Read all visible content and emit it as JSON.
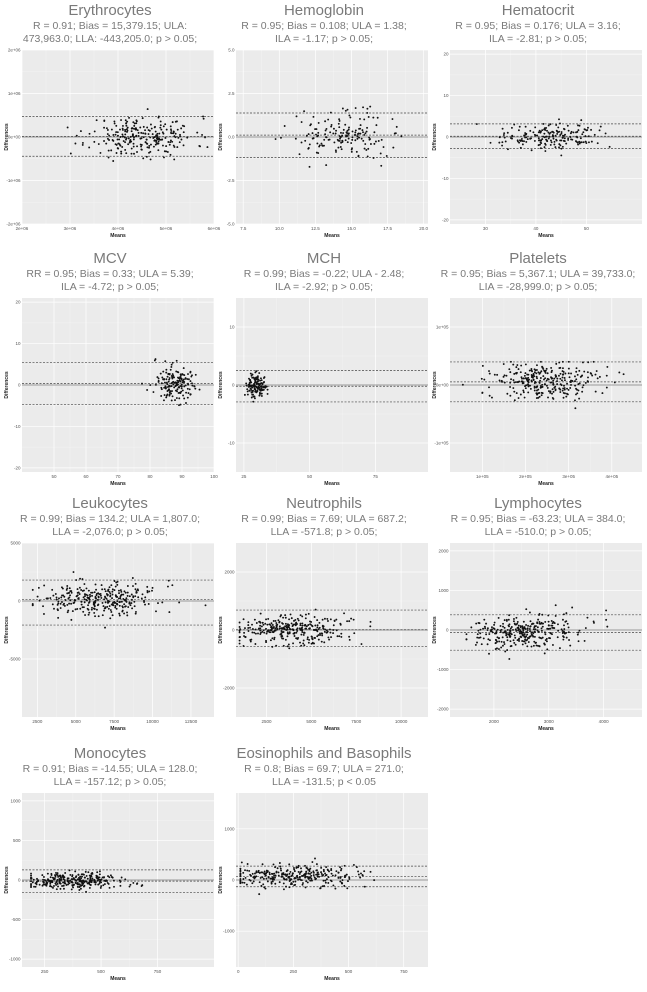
{
  "chart_data": [
    {
      "type": "scatter",
      "title": "Erythrocytes",
      "stats_lines": [
        "R = 0.91; Bias = 15,379.15; ULA:",
        "473,963.0; LLA: -443,205.0; p > 0.05;"
      ],
      "xlabel": "Means",
      "ylabel": "Differences",
      "xlim": [
        2000000,
        6000000
      ],
      "ylim": [
        -2000000,
        2000000
      ],
      "xticks": [
        {
          "v": 2000000,
          "label": "2e+06"
        },
        {
          "v": 3000000,
          "label": "3e+06"
        },
        {
          "v": 4000000,
          "label": "4e+06"
        },
        {
          "v": 5000000,
          "label": "5e+06"
        },
        {
          "v": 6000000,
          "label": "6e+06"
        }
      ],
      "yticks": [
        {
          "v": -2000000,
          "label": "-2e+06"
        },
        {
          "v": -1000000,
          "label": "-1e+06"
        },
        {
          "v": 0,
          "label": "0e+00"
        },
        {
          "v": 1000000,
          "label": "1e+06"
        },
        {
          "v": 2000000,
          "label": "2e+06"
        }
      ],
      "bias": 15379.15,
      "upper": 473963,
      "lower": -443205,
      "cluster": {
        "xc": 4500000,
        "xs": 550000,
        "ys": 230000,
        "n": 260,
        "xmin": 2100000,
        "xmax": 5900000,
        "ymin": -700000,
        "ymax": 700000,
        "seed": 11
      }
    },
    {
      "type": "scatter",
      "title": "Hemoglobin",
      "stats_lines": [
        "R = 0.95; Bias = 0.108; ULA = 1.38;",
        "ILA = -1.17; p > 0.05;"
      ],
      "xlabel": "Means",
      "ylabel": "Differences",
      "xlim": [
        7,
        20.3
      ],
      "ylim": [
        -5,
        5
      ],
      "xticks": [
        {
          "v": 7.5,
          "label": "7.5"
        },
        {
          "v": 10,
          "label": "10.0"
        },
        {
          "v": 12.5,
          "label": "12.5"
        },
        {
          "v": 15,
          "label": "15.0"
        },
        {
          "v": 17.5,
          "label": "17.5"
        },
        {
          "v": 20,
          "label": "20.0"
        }
      ],
      "yticks": [
        {
          "v": -5,
          "label": "-5.0"
        },
        {
          "v": -2.5,
          "label": "-2.5"
        },
        {
          "v": 0,
          "label": "0.0"
        },
        {
          "v": 2.5,
          "label": "2.5"
        },
        {
          "v": 5,
          "label": "5.0"
        }
      ],
      "bias": 0.108,
      "upper": 1.38,
      "lower": -1.17,
      "cluster": {
        "xc": 14.5,
        "xs": 1.6,
        "ys": 0.65,
        "n": 170,
        "xmin": 7.6,
        "xmax": 19.5,
        "ymin": -1.9,
        "ymax": 1.9,
        "seed": 22
      }
    },
    {
      "type": "scatter",
      "title": "Hematocrit",
      "stats_lines": [
        "R = 0.95; Bias = 0.176; ULA = 3.16;",
        "ILA = -2.81; p > 0.05;"
      ],
      "xlabel": "Means",
      "ylabel": "Differences",
      "xlim": [
        23,
        61
      ],
      "ylim": [
        -21,
        21
      ],
      "xticks": [
        {
          "v": 30,
          "label": "30"
        },
        {
          "v": 40,
          "label": "40"
        },
        {
          "v": 50,
          "label": "50"
        }
      ],
      "yticks": [
        {
          "v": -20,
          "label": "-20"
        },
        {
          "v": -10,
          "label": "-10"
        },
        {
          "v": 0,
          "label": "0"
        },
        {
          "v": 10,
          "label": "10"
        },
        {
          "v": 20,
          "label": "20"
        }
      ],
      "bias": 0.176,
      "upper": 3.16,
      "lower": -2.81,
      "cluster": {
        "xc": 43,
        "xs": 5,
        "ys": 1.5,
        "n": 190,
        "xmin": 24,
        "xmax": 60,
        "ymin": -5,
        "ymax": 5,
        "seed": 33
      }
    },
    {
      "type": "scatter",
      "title": "MCV",
      "stats_lines": [
        "RR = 0.95; Bias = 0.33; ULA = 5.39;",
        "ILA = -4.72; p > 0.05;"
      ],
      "xlabel": "Means",
      "ylabel": "Differences",
      "xlim": [
        40,
        100
      ],
      "ylim": [
        -21,
        21
      ],
      "xticks": [
        {
          "v": 50,
          "label": "50"
        },
        {
          "v": 60,
          "label": "60"
        },
        {
          "v": 70,
          "label": "70"
        },
        {
          "v": 80,
          "label": "80"
        },
        {
          "v": 90,
          "label": "90"
        },
        {
          "v": 100,
          "label": "100"
        }
      ],
      "yticks": [
        {
          "v": -20,
          "label": "-20"
        },
        {
          "v": -10,
          "label": "-10"
        },
        {
          "v": 0,
          "label": "0"
        },
        {
          "v": 10,
          "label": "10"
        },
        {
          "v": 20,
          "label": "20"
        }
      ],
      "bias": 0.33,
      "upper": 5.39,
      "lower": -4.72,
      "cluster": {
        "xc": 88,
        "xs": 3.5,
        "ys": 2.3,
        "n": 170,
        "xmin": 43,
        "xmax": 98,
        "ymin": -6,
        "ymax": 7,
        "seed": 44
      }
    },
    {
      "type": "scatter",
      "title": "MCH",
      "stats_lines": [
        "R = 0.99; Bias = -0.22; ULA - 2.48;",
        "ILA = -2.92; p > 0.05;"
      ],
      "xlabel": "Means",
      "ylabel": "Differences",
      "xlim": [
        22,
        95
      ],
      "ylim": [
        -15,
        15
      ],
      "xticks": [
        {
          "v": 25,
          "label": "25"
        },
        {
          "v": 50,
          "label": "50"
        },
        {
          "v": 75,
          "label": "75"
        }
      ],
      "yticks": [
        {
          "v": -10,
          "label": "-10"
        },
        {
          "v": 0,
          "label": "0"
        },
        {
          "v": 10,
          "label": "10"
        }
      ],
      "bias": -0.22,
      "upper": 2.48,
      "lower": -2.92,
      "cluster": {
        "xc": 29.5,
        "xs": 2,
        "ys": 1,
        "n": 140,
        "xmin": 24,
        "xmax": 34,
        "ymin": -3.4,
        "ymax": 2.5,
        "seed": 55
      }
    },
    {
      "type": "scatter",
      "title": "Platelets",
      "stats_lines": [
        "R = 0.95; Bias = 5,367.1; ULA = 39,733.0;",
        "LIA = -28,999.0; p > 0.05;"
      ],
      "xlabel": "Means",
      "ylabel": "Differences",
      "xlim": [
        25000,
        470000
      ],
      "ylim": [
        -150000,
        150000
      ],
      "xticks": [
        {
          "v": 100000,
          "label": "1e+05"
        },
        {
          "v": 200000,
          "label": "2e+05"
        },
        {
          "v": 300000,
          "label": "3e+05"
        },
        {
          "v": 400000,
          "label": "4e+05"
        }
      ],
      "yticks": [
        {
          "v": -100000,
          "label": "-1e+05"
        },
        {
          "v": 0,
          "label": "0e+00"
        },
        {
          "v": 100000,
          "label": "1e+05"
        }
      ],
      "bias": 5367.1,
      "upper": 39733,
      "lower": -28999,
      "cluster": {
        "xc": 245000,
        "xs": 60000,
        "ys": 16000,
        "n": 300,
        "xmin": 40000,
        "xmax": 460000,
        "ymin": -40000,
        "ymax": 40000,
        "seed": 66
      }
    },
    {
      "type": "scatter",
      "title": "Leukocytes",
      "stats_lines": [
        "R = 0.99; Bias = 134.2; ULA = 1,807.0;",
        "LLA = -2,076.0; p > 0.05;"
      ],
      "xlabel": "Means",
      "ylabel": "Differences",
      "xlim": [
        1500,
        14000
      ],
      "ylim": [
        -10000,
        5000
      ],
      "xticks": [
        {
          "v": 2500,
          "label": "2500"
        },
        {
          "v": 5000,
          "label": "5000"
        },
        {
          "v": 7500,
          "label": "7500"
        },
        {
          "v": 10000,
          "label": "10000"
        },
        {
          "v": 12500,
          "label": "12500"
        }
      ],
      "yticks": [
        {
          "v": -5000,
          "label": "-5000"
        },
        {
          "v": 0,
          "label": "0"
        },
        {
          "v": 5000,
          "label": "5000"
        }
      ],
      "bias": 134.2,
      "upper": 1807,
      "lower": -2076,
      "cluster": {
        "xc": 6500,
        "xs": 2000,
        "ys": 750,
        "n": 320,
        "xmin": 2200,
        "xmax": 13800,
        "ymin": -2600,
        "ymax": 2800,
        "seed": 77
      }
    },
    {
      "type": "scatter",
      "title": "Neutrophils",
      "stats_lines": [
        "R = 0.99; Bias = 7.69;  ULA = 687.2;",
        "LLA = -571.8;  p > 0.05;"
      ],
      "xlabel": "Means",
      "ylabel": "Differences",
      "xlim": [
        800,
        11500
      ],
      "ylim": [
        -3000,
        3000
      ],
      "xticks": [
        {
          "v": 2500,
          "label": "2500"
        },
        {
          "v": 5000,
          "label": "5000"
        },
        {
          "v": 7500,
          "label": "7500"
        },
        {
          "v": 10000,
          "label": "10000"
        }
      ],
      "yticks": [
        {
          "v": -2000,
          "label": "-2000"
        },
        {
          "v": 0,
          "label": "0"
        },
        {
          "v": 2000,
          "label": "2000"
        }
      ],
      "bias": 7.69,
      "upper": 687.2,
      "lower": -571.8,
      "cluster": {
        "xc": 4000,
        "xs": 1500,
        "ys": 260,
        "n": 320,
        "xmin": 1000,
        "xmax": 11000,
        "ymin": -800,
        "ymax": 950,
        "seed": 88
      }
    },
    {
      "type": "scatter",
      "title": "Lymphocytes",
      "stats_lines": [
        "R = 0.95; Bias = -63.23; ULA = 384.0;",
        "LLA = -510.0; p > 0.05;"
      ],
      "xlabel": "Means",
      "ylabel": "Differences",
      "xlim": [
        1200,
        4700
      ],
      "ylim": [
        -2200,
        2200
      ],
      "xticks": [
        {
          "v": 2000,
          "label": "2000"
        },
        {
          "v": 3000,
          "label": "3000"
        },
        {
          "v": 4000,
          "label": "4000"
        }
      ],
      "yticks": [
        {
          "v": -2000,
          "label": "-2000"
        },
        {
          "v": -1000,
          "label": "-1000"
        },
        {
          "v": 0,
          "label": "0"
        },
        {
          "v": 1000,
          "label": "1000"
        },
        {
          "v": 2000,
          "label": "2000"
        }
      ],
      "bias": -63.23,
      "upper": 384,
      "lower": -510,
      "cluster": {
        "xc": 2600,
        "xs": 500,
        "ys": 220,
        "n": 320,
        "xmin": 1500,
        "xmax": 4500,
        "ymin": -800,
        "ymax": 700,
        "seed": 99
      }
    },
    {
      "type": "scatter",
      "title": "Monocytes",
      "stats_lines": [
        "R = 0.91; Bias = -14.55; ULA = 128.0;",
        "LLA = -157.12;  p > 0.05;"
      ],
      "xlabel": "Means",
      "ylabel": "Differences",
      "xlim": [
        150,
        1000
      ],
      "ylim": [
        -1100,
        1100
      ],
      "xticks": [
        {
          "v": 250,
          "label": "250"
        },
        {
          "v": 500,
          "label": "500"
        },
        {
          "v": 750,
          "label": "750"
        }
      ],
      "yticks": [
        {
          "v": -1000,
          "label": "-1000"
        },
        {
          "v": -500,
          "label": "-500"
        },
        {
          "v": 0,
          "label": "0"
        },
        {
          "v": 500,
          "label": "500"
        },
        {
          "v": 1000,
          "label": "1000"
        }
      ],
      "bias": -14.55,
      "upper": 128,
      "lower": -157.12,
      "cluster": {
        "xc": 380,
        "xs": 120,
        "ys": 50,
        "n": 300,
        "xmin": 190,
        "xmax": 960,
        "ymin": -200,
        "ymax": 200,
        "seed": 111
      }
    },
    {
      "type": "scatter",
      "title": "Eosinophils and Basophils",
      "stats_lines": [
        "R = 0.8; Bias = 69.7; ULA = 271.0;",
        "LLA = -131.5;  p < 0.05"
      ],
      "xlabel": "Means",
      "ylabel": "Differences",
      "xlim": [
        -10,
        860
      ],
      "ylim": [
        -1700,
        1700
      ],
      "xticks": [
        {
          "v": 0,
          "label": "0"
        },
        {
          "v": 250,
          "label": "250"
        },
        {
          "v": 500,
          "label": "500"
        },
        {
          "v": 750,
          "label": "750"
        }
      ],
      "yticks": [
        {
          "v": -1000,
          "label": "-1000"
        },
        {
          "v": 0,
          "label": "0"
        },
        {
          "v": 1000,
          "label": "1000"
        }
      ],
      "bias": 69.7,
      "upper": 271,
      "lower": -131.5,
      "cluster": {
        "xc": 250,
        "xs": 150,
        "ys": 110,
        "n": 300,
        "xmin": 10,
        "xmax": 840,
        "ymin": -300,
        "ymax": 420,
        "seed": 122
      }
    }
  ]
}
